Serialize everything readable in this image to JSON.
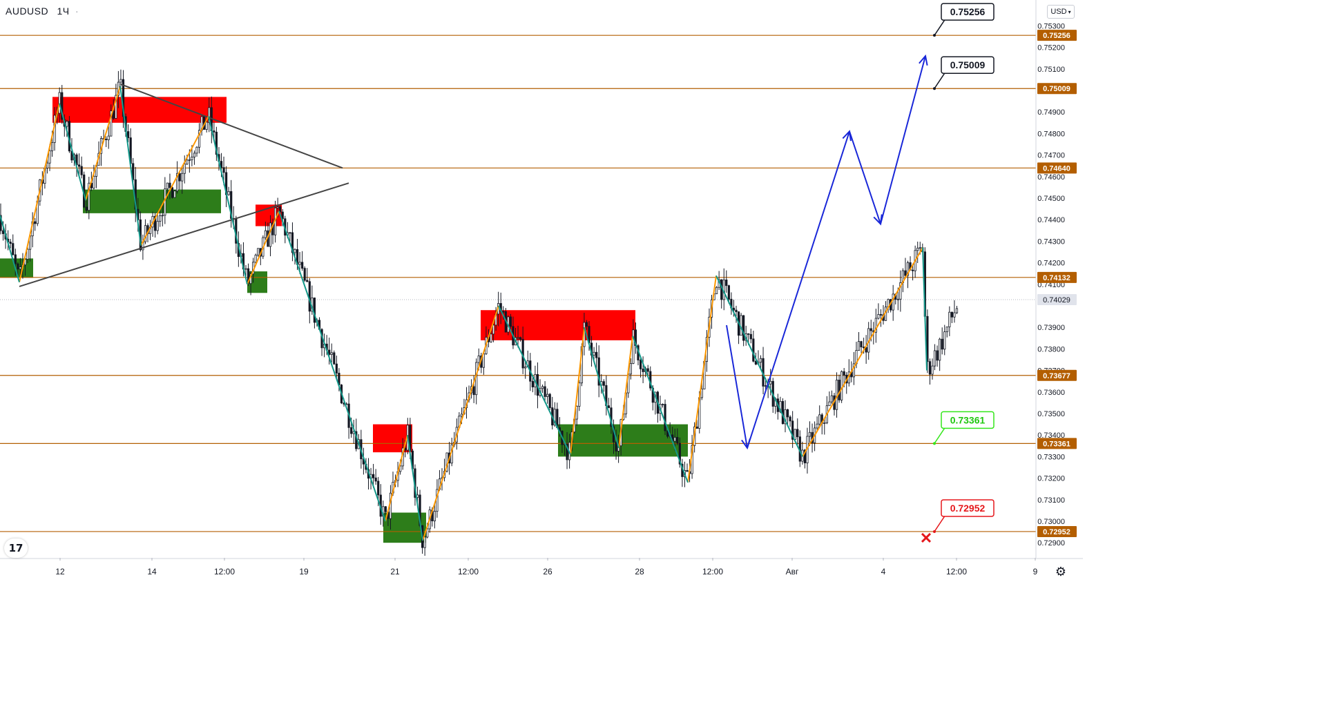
{
  "header": {
    "symbol": "AUDUSD",
    "timeframe": "1Ч",
    "currency": "USD"
  },
  "colors": {
    "up": "#131722",
    "down": "#131722",
    "level": "#b35e00",
    "resistance_zone": "#ff0000",
    "support_zone": "#2d7d1a",
    "swing_up": "#ff9800",
    "swing_down": "#13988a",
    "forecast": "#1927d8",
    "trend": "#444444"
  },
  "chart_data": {
    "type": "candlestick",
    "instrument": "AUDUSD",
    "timeframe": "1Ч",
    "y_range": [
      0.7283,
      0.7542
    ],
    "y_ticks": [
      "0.75300",
      "0.75200",
      "0.75100",
      "0.74900",
      "0.74800",
      "0.74700",
      "0.74600",
      "0.74500",
      "0.74400",
      "0.74300",
      "0.74200",
      "0.74100",
      "0.73900",
      "0.73800",
      "0.73700",
      "0.73600",
      "0.73500",
      "0.73400",
      "0.73300",
      "0.73200",
      "0.73100",
      "0.73000",
      "0.72900"
    ],
    "x_ticks": [
      {
        "label": "12",
        "t": 87
      },
      {
        "label": "14",
        "t": 220
      },
      {
        "label": "12:00",
        "t": 325
      },
      {
        "label": "19",
        "t": 440
      },
      {
        "label": "21",
        "t": 572
      },
      {
        "label": "12:00",
        "t": 678
      },
      {
        "label": "26",
        "t": 793
      },
      {
        "label": "28",
        "t": 926
      },
      {
        "label": "12:00",
        "t": 1032
      },
      {
        "label": "Авг",
        "t": 1147
      },
      {
        "label": "4",
        "t": 1279
      },
      {
        "label": "12:00",
        "t": 1385
      },
      {
        "label": "9",
        "t": 1499
      }
    ],
    "current_price": "0.74029",
    "levels": [
      {
        "value": 0.75256,
        "label": "0.75256"
      },
      {
        "value": 0.75009,
        "label": "0.75009"
      },
      {
        "value": 0.7464,
        "label": "0.74640"
      },
      {
        "value": 0.74132,
        "label": "0.74132"
      },
      {
        "value": 0.73677,
        "label": "0.73677"
      },
      {
        "value": 0.73361,
        "label": "0.73361"
      },
      {
        "value": 0.72952,
        "label": "0.72952"
      }
    ],
    "target_callouts": [
      {
        "value": 0.75256,
        "label": "0.75256",
        "style": "target"
      },
      {
        "value": 0.75009,
        "label": "0.75009",
        "style": "target"
      },
      {
        "value": 0.73361,
        "label": "0.73361",
        "style": "entry"
      },
      {
        "value": 0.72952,
        "label": "0.72952",
        "style": "stop"
      }
    ],
    "zones": [
      {
        "kind": "resistance",
        "t0": 76,
        "t1": 328,
        "p0": 0.7485,
        "p1": 0.7497
      },
      {
        "kind": "support",
        "t0": 120,
        "t1": 320,
        "p0": 0.7443,
        "p1": 0.7454
      },
      {
        "kind": "support",
        "t0": 0,
        "t1": 48,
        "p0": 0.7413,
        "p1": 0.7422
      },
      {
        "kind": "resistance",
        "t0": 370,
        "t1": 408,
        "p0": 0.7437,
        "p1": 0.7447
      },
      {
        "kind": "support",
        "t0": 358,
        "t1": 387,
        "p0": 0.7406,
        "p1": 0.7416
      },
      {
        "kind": "resistance",
        "t0": 696,
        "t1": 920,
        "p0": 0.7384,
        "p1": 0.7398
      },
      {
        "kind": "support",
        "t0": 808,
        "t1": 996,
        "p0": 0.733,
        "p1": 0.7345
      },
      {
        "kind": "resistance",
        "t0": 540,
        "t1": 597,
        "p0": 0.7332,
        "p1": 0.7345
      },
      {
        "kind": "support",
        "t0": 555,
        "t1": 617,
        "p0": 0.729,
        "p1": 0.7304
      }
    ],
    "trend_lines": [
      {
        "t0": 174,
        "p0": 0.7503,
        "t1": 496,
        "p1": 0.7464
      },
      {
        "t0": 28,
        "p0": 0.7409,
        "t1": 505,
        "p1": 0.7457
      }
    ],
    "swing_up": [
      [
        [
          28,
          0.7411
        ],
        [
          86,
          0.7494
        ]
      ],
      [
        [
          124,
          0.7449
        ],
        [
          174,
          0.7502
        ]
      ],
      [
        [
          204,
          0.7428
        ],
        [
          302,
          0.7488
        ]
      ],
      [
        [
          358,
          0.741
        ],
        [
          404,
          0.7444
        ]
      ],
      [
        [
          558,
          0.73
        ],
        [
          590,
          0.734
        ]
      ],
      [
        [
          612,
          0.7291
        ],
        [
          722,
          0.74
        ]
      ],
      [
        [
          826,
          0.7331
        ],
        [
          846,
          0.739
        ]
      ],
      [
        [
          896,
          0.7334
        ],
        [
          916,
          0.7386
        ]
      ],
      [
        [
          996,
          0.7318
        ],
        [
          1037,
          0.7414
        ]
      ],
      [
        [
          1162,
          0.733
        ],
        [
          1336,
          0.7427
        ]
      ]
    ],
    "swing_down": [
      [
        [
          0,
          0.7442
        ],
        [
          28,
          0.7411
        ]
      ],
      [
        [
          86,
          0.7494
        ],
        [
          124,
          0.7449
        ]
      ],
      [
        [
          174,
          0.7502
        ],
        [
          204,
          0.7428
        ]
      ],
      [
        [
          302,
          0.7488
        ],
        [
          358,
          0.741
        ]
      ],
      [
        [
          404,
          0.7444
        ],
        [
          558,
          0.73
        ]
      ],
      [
        [
          590,
          0.734
        ],
        [
          612,
          0.7291
        ]
      ],
      [
        [
          722,
          0.74
        ],
        [
          826,
          0.7331
        ]
      ],
      [
        [
          846,
          0.739
        ],
        [
          896,
          0.7334
        ]
      ],
      [
        [
          916,
          0.7386
        ],
        [
          996,
          0.7318
        ]
      ],
      [
        [
          1037,
          0.7414
        ],
        [
          1162,
          0.733
        ]
      ],
      [
        [
          1336,
          0.7427
        ],
        [
          1342,
          0.737
        ]
      ]
    ],
    "forecast_path": [
      [
        1052,
        0.7391
      ],
      [
        1082,
        0.7334
      ],
      [
        1230,
        0.7481
      ],
      [
        1275,
        0.7438
      ],
      [
        1340,
        0.7516
      ]
    ],
    "candle_path": [
      [
        0,
        0.7442
      ],
      [
        28,
        0.7411
      ],
      [
        86,
        0.7494
      ],
      [
        124,
        0.7449
      ],
      [
        174,
        0.7502
      ],
      [
        204,
        0.7428
      ],
      [
        302,
        0.7488
      ],
      [
        358,
        0.741
      ],
      [
        404,
        0.7444
      ],
      [
        558,
        0.73
      ],
      [
        590,
        0.734
      ],
      [
        612,
        0.7291
      ],
      [
        722,
        0.74
      ],
      [
        826,
        0.7331
      ],
      [
        846,
        0.739
      ],
      [
        896,
        0.7334
      ],
      [
        916,
        0.7386
      ],
      [
        996,
        0.7318
      ],
      [
        1037,
        0.7414
      ],
      [
        1162,
        0.733
      ],
      [
        1242,
        0.7378
      ],
      [
        1336,
        0.7427
      ],
      [
        1342,
        0.737
      ],
      [
        1360,
        0.7381
      ],
      [
        1388,
        0.7402
      ]
    ]
  }
}
